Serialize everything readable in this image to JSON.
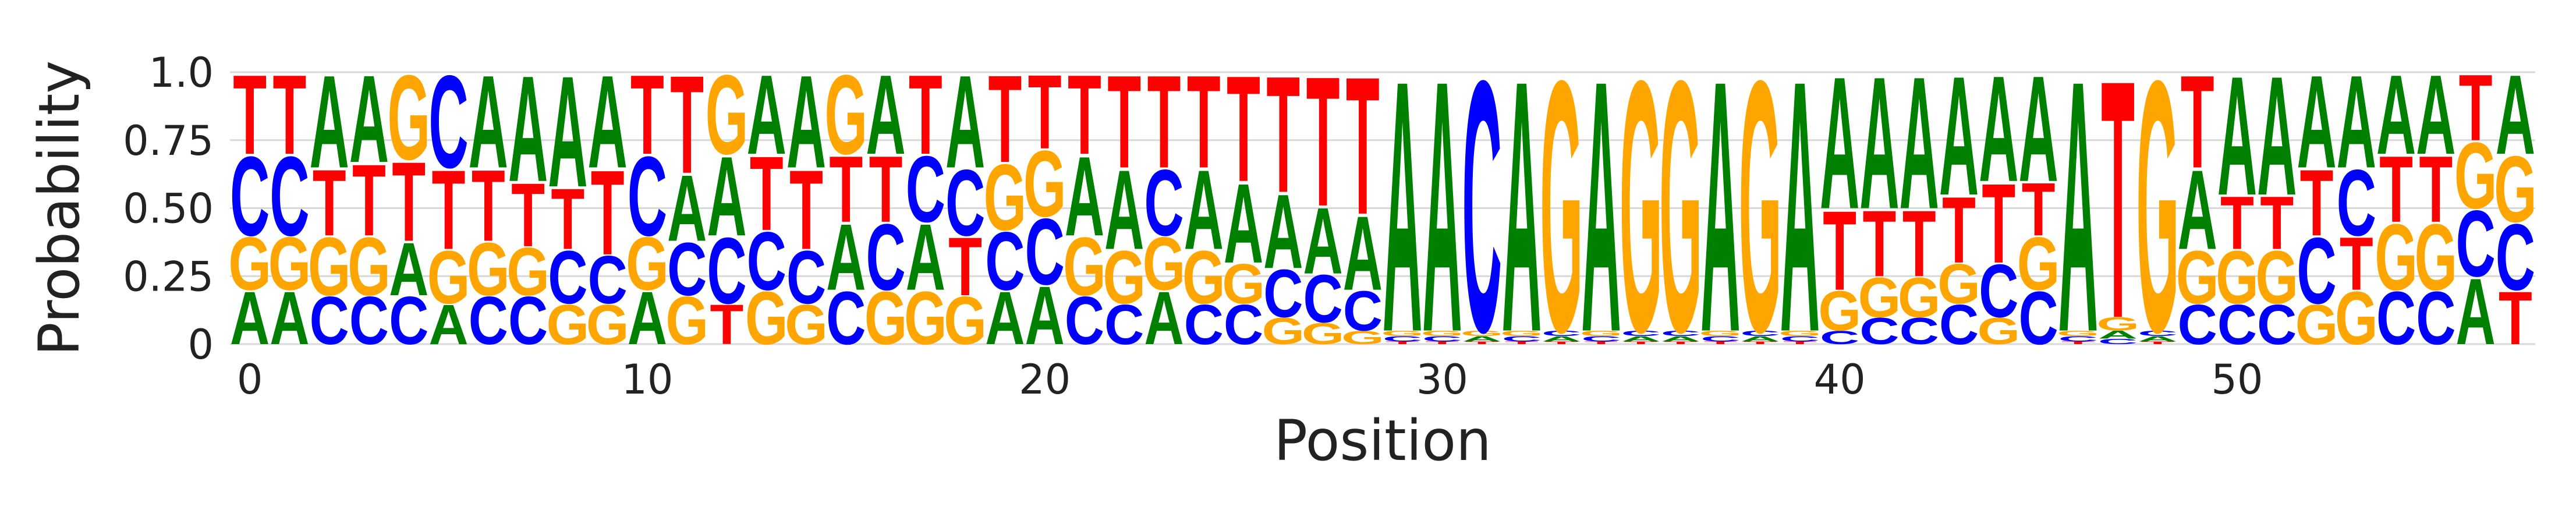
{
  "chart_data": {
    "type": "sequence-logo",
    "xlabel": "Position",
    "ylabel": "Probability",
    "ylim": [
      0,
      1
    ],
    "yticks": [
      0,
      0.25,
      0.5,
      0.75,
      1
    ],
    "ytick_labels": [
      "0",
      "0.25",
      "0.50",
      "0.75",
      "1.0"
    ],
    "xticks": [
      0,
      10,
      20,
      30,
      40,
      50
    ],
    "xtick_labels": [
      "0",
      "10",
      "20",
      "30",
      "40",
      "50"
    ],
    "grid": "horizontal",
    "colors": {
      "A": "#008000",
      "C": "#0000ff",
      "G": "#ffa500",
      "T": "#ff0000"
    },
    "positions": [
      {
        "pos": 0,
        "A": 0.2,
        "C": 0.3,
        "G": 0.2,
        "T": 0.3
      },
      {
        "pos": 1,
        "A": 0.2,
        "C": 0.3,
        "G": 0.2,
        "T": 0.3
      },
      {
        "pos": 2,
        "A": 0.35,
        "C": 0.18,
        "G": 0.22,
        "T": 0.25
      },
      {
        "pos": 3,
        "A": 0.33,
        "C": 0.18,
        "G": 0.22,
        "T": 0.27
      },
      {
        "pos": 4,
        "A": 0.2,
        "C": 0.18,
        "G": 0.32,
        "T": 0.3
      },
      {
        "pos": 5,
        "A": 0.15,
        "C": 0.35,
        "G": 0.2,
        "T": 0.3
      },
      {
        "pos": 6,
        "A": 0.35,
        "C": 0.18,
        "G": 0.2,
        "T": 0.27
      },
      {
        "pos": 7,
        "A": 0.4,
        "C": 0.18,
        "G": 0.18,
        "T": 0.24
      },
      {
        "pos": 8,
        "A": 0.42,
        "C": 0.2,
        "G": 0.15,
        "T": 0.23
      },
      {
        "pos": 9,
        "A": 0.35,
        "C": 0.18,
        "G": 0.15,
        "T": 0.32
      },
      {
        "pos": 10,
        "A": 0.2,
        "C": 0.3,
        "G": 0.2,
        "T": 0.3
      },
      {
        "pos": 11,
        "A": 0.25,
        "C": 0.2,
        "G": 0.18,
        "T": 0.37
      },
      {
        "pos": 12,
        "A": 0.3,
        "C": 0.25,
        "G": 0.3,
        "T": 0.15
      },
      {
        "pos": 13,
        "A": 0.3,
        "C": 0.22,
        "G": 0.2,
        "T": 0.28
      },
      {
        "pos": 14,
        "A": 0.35,
        "C": 0.2,
        "G": 0.15,
        "T": 0.3
      },
      {
        "pos": 15,
        "A": 0.25,
        "C": 0.2,
        "G": 0.3,
        "T": 0.25
      },
      {
        "pos": 16,
        "A": 0.3,
        "C": 0.25,
        "G": 0.2,
        "T": 0.25
      },
      {
        "pos": 17,
        "A": 0.25,
        "C": 0.25,
        "G": 0.2,
        "T": 0.3
      },
      {
        "pos": 18,
        "A": 0.35,
        "C": 0.25,
        "G": 0.18,
        "T": 0.22
      },
      {
        "pos": 19,
        "A": 0.2,
        "C": 0.22,
        "G": 0.25,
        "T": 0.33
      },
      {
        "pos": 20,
        "A": 0.22,
        "C": 0.25,
        "G": 0.25,
        "T": 0.28
      },
      {
        "pos": 21,
        "A": 0.3,
        "C": 0.18,
        "G": 0.22,
        "T": 0.3
      },
      {
        "pos": 22,
        "A": 0.3,
        "C": 0.15,
        "G": 0.2,
        "T": 0.35
      },
      {
        "pos": 23,
        "A": 0.2,
        "C": 0.25,
        "G": 0.2,
        "T": 0.35
      },
      {
        "pos": 24,
        "A": 0.3,
        "C": 0.15,
        "G": 0.2,
        "T": 0.35
      },
      {
        "pos": 25,
        "A": 0.3,
        "C": 0.15,
        "G": 0.15,
        "T": 0.4
      },
      {
        "pos": 26,
        "A": 0.28,
        "C": 0.18,
        "G": 0.1,
        "T": 0.44
      },
      {
        "pos": 27,
        "A": 0.25,
        "C": 0.18,
        "G": 0.08,
        "T": 0.49
      },
      {
        "pos": 28,
        "A": 0.28,
        "C": 0.15,
        "G": 0.05,
        "T": 0.52
      },
      {
        "pos": 29,
        "A": 0.95,
        "C": 0.02,
        "G": 0.02,
        "T": 0.01
      },
      {
        "pos": 30,
        "A": 0.95,
        "C": 0.02,
        "G": 0.02,
        "T": 0.01
      },
      {
        "pos": 31,
        "A": 0.02,
        "C": 0.95,
        "G": 0.02,
        "T": 0.01
      },
      {
        "pos": 32,
        "A": 0.95,
        "C": 0.02,
        "G": 0.02,
        "T": 0.01
      },
      {
        "pos": 33,
        "A": 0.02,
        "C": 0.02,
        "G": 0.95,
        "T": 0.01
      },
      {
        "pos": 34,
        "A": 0.95,
        "C": 0.02,
        "G": 0.02,
        "T": 0.01
      },
      {
        "pos": 35,
        "A": 0.02,
        "C": 0.02,
        "G": 0.95,
        "T": 0.01
      },
      {
        "pos": 36,
        "A": 0.02,
        "C": 0.02,
        "G": 0.95,
        "T": 0.01
      },
      {
        "pos": 37,
        "A": 0.95,
        "C": 0.02,
        "G": 0.02,
        "T": 0.01
      },
      {
        "pos": 38,
        "A": 0.02,
        "C": 0.02,
        "G": 0.95,
        "T": 0.01
      },
      {
        "pos": 39,
        "A": 0.95,
        "C": 0.02,
        "G": 0.02,
        "T": 0.01
      },
      {
        "pos": 40,
        "A": 0.5,
        "C": 0.05,
        "G": 0.15,
        "T": 0.3
      },
      {
        "pos": 41,
        "A": 0.5,
        "C": 0.1,
        "G": 0.15,
        "T": 0.25
      },
      {
        "pos": 42,
        "A": 0.5,
        "C": 0.1,
        "G": 0.15,
        "T": 0.25
      },
      {
        "pos": 43,
        "A": 0.45,
        "C": 0.15,
        "G": 0.15,
        "T": 0.25
      },
      {
        "pos": 44,
        "A": 0.4,
        "C": 0.2,
        "G": 0.1,
        "T": 0.3
      },
      {
        "pos": 45,
        "A": 0.4,
        "C": 0.2,
        "G": 0.2,
        "T": 0.2
      },
      {
        "pos": 46,
        "A": 0.95,
        "C": 0.02,
        "G": 0.02,
        "T": 0.01
      },
      {
        "pos": 47,
        "A": 0.03,
        "C": 0.02,
        "G": 0.05,
        "T": 0.9
      },
      {
        "pos": 48,
        "A": 0.02,
        "C": 0.02,
        "G": 0.95,
        "T": 0.01
      },
      {
        "pos": 49,
        "A": 0.3,
        "C": 0.15,
        "G": 0.2,
        "T": 0.35
      },
      {
        "pos": 50,
        "A": 0.45,
        "C": 0.15,
        "G": 0.2,
        "T": 0.2
      },
      {
        "pos": 51,
        "A": 0.45,
        "C": 0.15,
        "G": 0.2,
        "T": 0.2
      },
      {
        "pos": 52,
        "A": 0.35,
        "C": 0.25,
        "G": 0.15,
        "T": 0.25
      },
      {
        "pos": 53,
        "A": 0.35,
        "C": 0.25,
        "G": 0.2,
        "T": 0.2
      },
      {
        "pos": 54,
        "A": 0.3,
        "C": 0.2,
        "G": 0.25,
        "T": 0.25
      },
      {
        "pos": 55,
        "A": 0.3,
        "C": 0.2,
        "G": 0.25,
        "T": 0.25
      },
      {
        "pos": 56,
        "A": 0.25,
        "C": 0.25,
        "G": 0.25,
        "T": 0.25
      },
      {
        "pos": 57,
        "A": 0.3,
        "C": 0.25,
        "G": 0.25,
        "T": 0.2
      }
    ]
  }
}
